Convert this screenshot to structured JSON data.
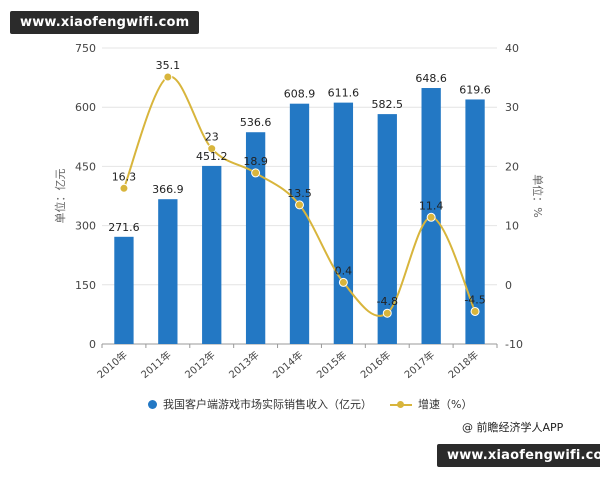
{
  "watermarks": {
    "top": "www.xiaofengwifi.com",
    "bottom": "www.xiaofengwifi.com"
  },
  "source": "@ 前瞻经济学人APP",
  "chart_data": {
    "type": "bar",
    "categories": [
      "2010年",
      "2011年",
      "2012年",
      "2013年",
      "2014年",
      "2015年",
      "2016年",
      "2017年",
      "2018年"
    ],
    "series": [
      {
        "name": "我国客户端游戏市场实际销售收入（亿元）",
        "type": "bar",
        "axis": "left",
        "color": "#2378c4",
        "values": [
          271.6,
          366.9,
          451.2,
          536.6,
          608.9,
          611.6,
          582.5,
          648.6,
          619.6
        ]
      },
      {
        "name": "增速（%）",
        "type": "line",
        "axis": "right",
        "color": "#d8b53c",
        "values": [
          16.3,
          35.1,
          23,
          18.9,
          13.5,
          0.4,
          -4.8,
          11.4,
          -4.5
        ]
      }
    ],
    "left_axis": {
      "label": "单位：亿元",
      "min": 0,
      "max": 750,
      "ticks": [
        0,
        150,
        300,
        450,
        600,
        750
      ]
    },
    "right_axis": {
      "label": "单位：%",
      "min": -10,
      "max": 40,
      "ticks": [
        -10,
        0,
        10,
        20,
        30,
        40
      ]
    },
    "legend_position": "bottom"
  }
}
